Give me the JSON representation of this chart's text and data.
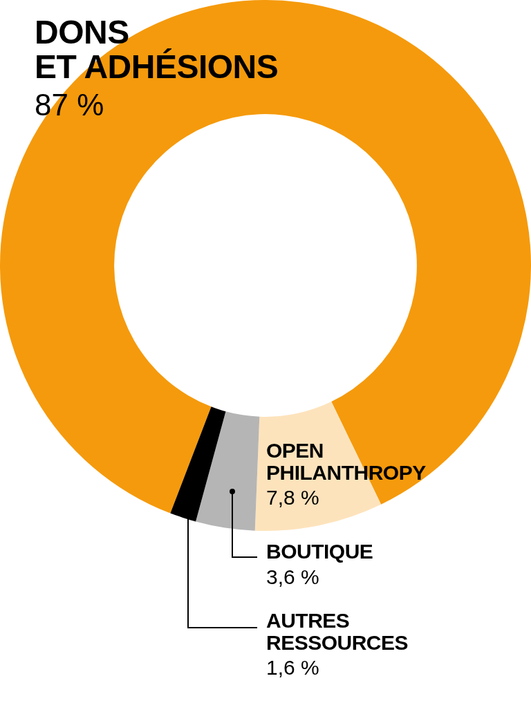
{
  "chart_data": {
    "type": "donut",
    "categories": [
      "DONS\nET ADHÉSIONS",
      "OPEN\nPHILANTHROPY",
      "BOUTIQUE",
      "AUTRES\nRESSOURCES"
    ],
    "values": [
      87,
      7.8,
      3.6,
      1.6
    ],
    "colors": [
      "#f59a0c",
      "#fde3bc",
      "#b5b5b5",
      "#000000"
    ],
    "value_labels": [
      "87 %",
      "7,8 %",
      "3,6 %",
      "1,6 %"
    ],
    "legend": false
  }
}
